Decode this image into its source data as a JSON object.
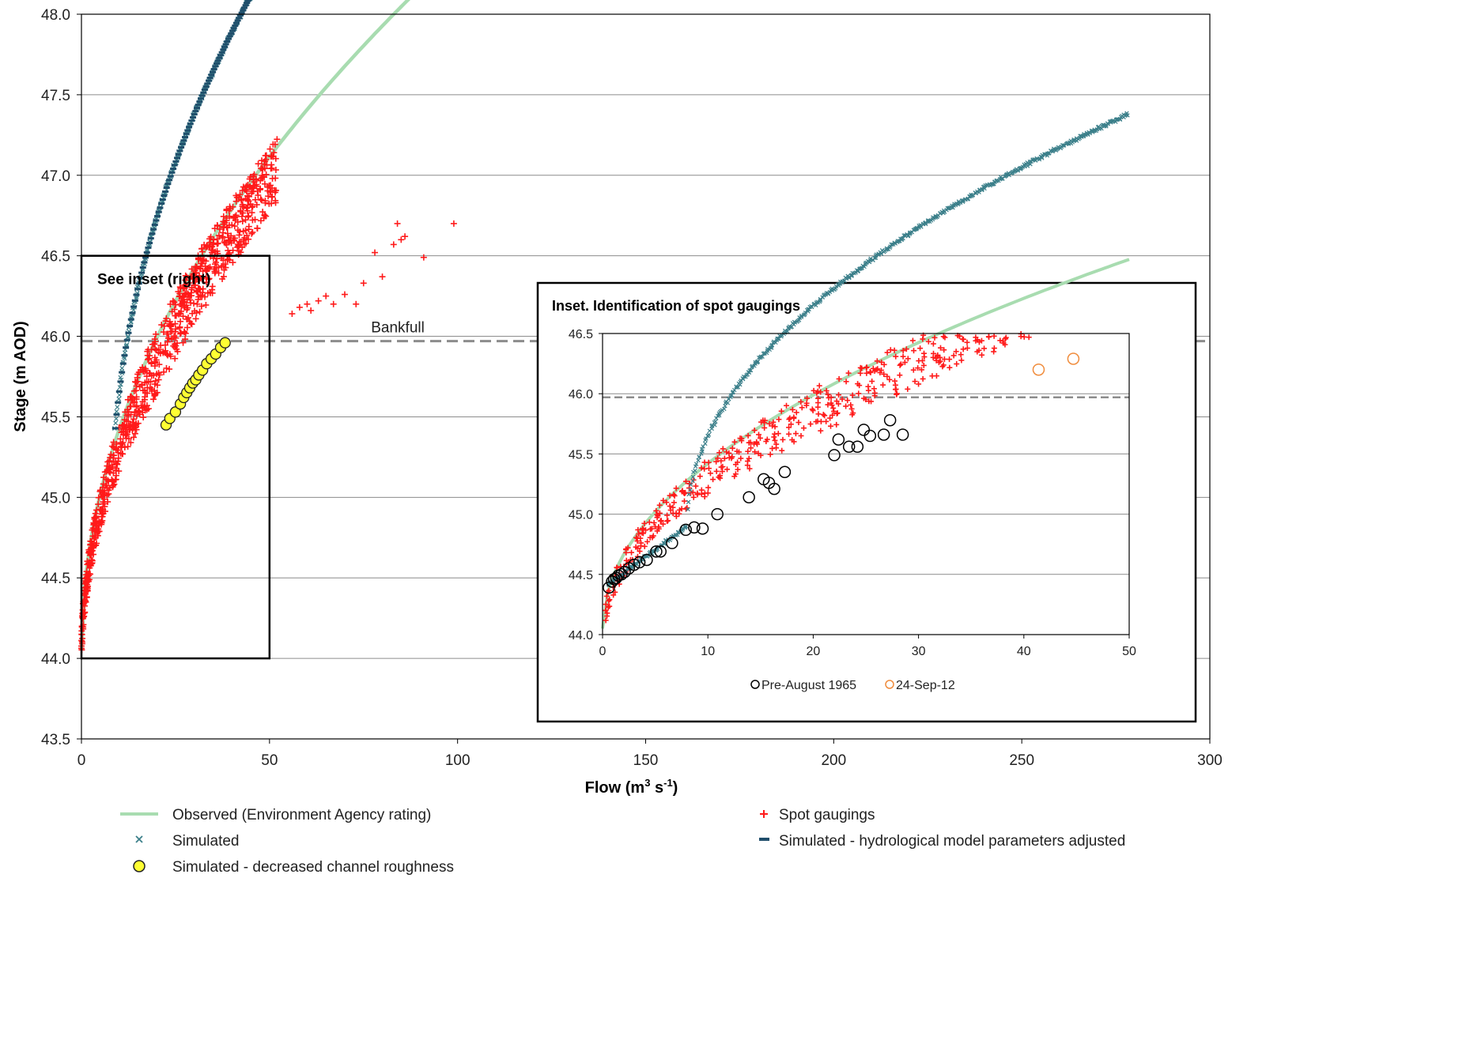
{
  "chart_data": [
    {
      "type": "scatter",
      "xlabel_main": "Flow (m",
      "xlabel_sup1": "3",
      "xlabel_mid": " s",
      "xlabel_sup2": "-1",
      "xlabel_end": ")",
      "ylabel": "Stage (m AOD)",
      "xlim": [
        0,
        300
      ],
      "ylim": [
        43.5,
        48.0
      ],
      "xticks": [
        0,
        50,
        100,
        150,
        200,
        250,
        300
      ],
      "yticks": [
        43.5,
        44.0,
        44.5,
        45.0,
        45.5,
        46.0,
        46.5,
        47.0,
        47.5,
        48.0
      ],
      "grid": true,
      "bankfull": {
        "label": "Bankfull",
        "stage": 45.97
      },
      "inset_box": {
        "label": "See inset (right)",
        "x": [
          0,
          50
        ],
        "y": [
          44.0,
          46.5
        ]
      },
      "legend": [
        {
          "key": "observed",
          "label": "Observed (Environment Agency rating)"
        },
        {
          "key": "spot",
          "label": "Spot gaugings"
        },
        {
          "key": "simulated",
          "label": "Simulated"
        },
        {
          "key": "adjusted",
          "label": "Simulated - hydrological model parameters adjusted"
        },
        {
          "key": "roughness",
          "label": "Simulated - decreased channel roughness"
        }
      ],
      "colors": {
        "observed": "#a8dcb0",
        "simulated": "#3b7f8a",
        "adjusted": "#1f4e6b",
        "spot": "#ff1a1a",
        "roughness_fill": "#ffff33",
        "bankfull": "#8c8c8c"
      },
      "series": {
        "observed": {
          "rating": {
            "q0": 0,
            "h0": 44.05,
            "a": 0.4335,
            "b": 0.5
          },
          "q_range": [
            0,
            240
          ]
        },
        "simulated": {
          "rating": {
            "q0": 8,
            "h0": 44.9,
            "a": 0.5285,
            "b": 0.5
          },
          "q_range": [
            9,
            47
          ]
        },
        "adjusted": {
          "rating": {
            "q0": 8,
            "h0": 44.9,
            "a": 0.5285,
            "b": 0.5
          },
          "q_range": [
            9,
            176
          ]
        },
        "roughness": {
          "x": [
            22.5,
            23.5,
            25,
            26.3,
            27.2,
            28,
            28.8,
            29.6,
            30.4,
            31.2,
            32.2,
            33.3,
            34.5,
            35.7,
            37,
            38.2
          ],
          "y": [
            45.45,
            45.49,
            45.53,
            45.58,
            45.62,
            45.65,
            45.68,
            45.71,
            45.73,
            45.76,
            45.79,
            45.83,
            45.86,
            45.89,
            45.93,
            45.96
          ]
        },
        "spot": {
          "generated_below": "observed",
          "q_range": [
            0,
            52
          ],
          "offset_range": [
            -0.35,
            0.05
          ],
          "count": 900,
          "extra_x": [
            56,
            58,
            60,
            61,
            63,
            65,
            67,
            70,
            73,
            75,
            78,
            80,
            83,
            84,
            85,
            86,
            91,
            99
          ],
          "extra_y": [
            46.14,
            46.18,
            46.2,
            46.16,
            46.22,
            46.25,
            46.2,
            46.26,
            46.2,
            46.33,
            46.52,
            46.37,
            46.57,
            46.7,
            46.6,
            46.62,
            46.49,
            46.7
          ]
        }
      }
    },
    {
      "type": "scatter",
      "title": "Inset. Identification of spot gaugings",
      "xlim": [
        0,
        50
      ],
      "ylim": [
        44.0,
        46.5
      ],
      "xticks": [
        0,
        10,
        20,
        30,
        40,
        50
      ],
      "yticks": [
        44.0,
        44.5,
        45.0,
        45.5,
        46.0,
        46.5
      ],
      "grid": true,
      "bankfull_stage": 45.97,
      "legend": [
        {
          "key": "pre1965",
          "label": "Pre-August 1965",
          "color": "#000000"
        },
        {
          "key": "sep12",
          "label": "24-Sep-12",
          "color": "#f08c3c"
        }
      ],
      "pre1965": {
        "x": [
          0.6,
          0.9,
          1.1,
          1.3,
          1.5,
          1.8,
          2.1,
          2.5,
          3.0,
          3.5,
          4.2,
          5.1,
          5.5,
          6.6,
          7.9,
          8.7,
          9.5,
          10.9,
          13.9,
          15.3,
          15.8,
          16.3,
          17.3,
          22.0,
          22.4,
          23.4,
          24.2,
          24.8,
          25.4,
          26.7,
          27.3,
          28.5
        ],
        "y": [
          44.39,
          44.44,
          44.46,
          44.47,
          44.49,
          44.5,
          44.52,
          44.55,
          44.58,
          44.6,
          44.62,
          44.69,
          44.69,
          44.76,
          44.87,
          44.89,
          44.88,
          45.0,
          45.14,
          45.29,
          45.26,
          45.21,
          45.35,
          45.49,
          45.62,
          45.56,
          45.56,
          45.7,
          45.65,
          45.66,
          45.78,
          45.66
        ]
      },
      "sep12": {
        "x": [
          41.4,
          44.7
        ],
        "y": [
          46.2,
          46.29
        ]
      }
    }
  ]
}
